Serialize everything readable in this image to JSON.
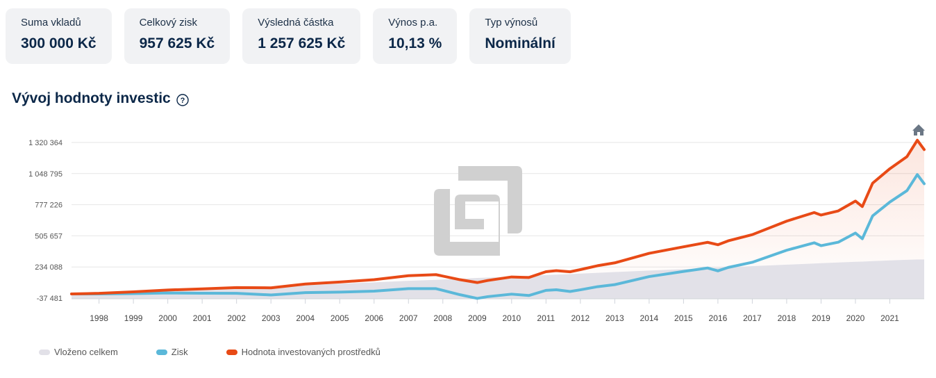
{
  "stats": [
    {
      "label": "Suma vkladů",
      "value": "300 000 Kč"
    },
    {
      "label": "Celkový zisk",
      "value": "957 625 Kč"
    },
    {
      "label": "Výsledná částka",
      "value": "1 257 625 Kč"
    },
    {
      "label": "Výnos p.a.",
      "value": "10,13 %"
    },
    {
      "label": "Typ výnosů",
      "value": "Nominální"
    }
  ],
  "section_title": "Vývoj hodnoty investic",
  "icons": {
    "help": "question-circle-icon",
    "home": "home-icon",
    "watermark": "logo-watermark"
  },
  "colors": {
    "navy": "#0b2748",
    "deposited": "#e2e1e8",
    "profit": "#5bb8d9",
    "value": "#e84a16",
    "watermark": "#d0d0d0"
  },
  "legend": [
    {
      "label": "Vloženo celkem",
      "color": "#e2e1e8"
    },
    {
      "label": "Zisk",
      "color": "#5bb8d9"
    },
    {
      "label": "Hodnota investovaných prostředků",
      "color": "#e84a16"
    }
  ],
  "chart_data": {
    "type": "area",
    "ytick_labels": [
      "1 320 364",
      "1 048 795",
      "777 226",
      "505 657",
      "234 088",
      "-37 481"
    ],
    "yticks": [
      1320364,
      1048795,
      777226,
      505657,
      234088,
      -37481
    ],
    "ylim": [
      -37481,
      1320364
    ],
    "xlim": [
      1997.2,
      2022.0
    ],
    "xtick_labels": [
      "1998",
      "1999",
      "2000",
      "2001",
      "2002",
      "2003",
      "2004",
      "2005",
      "2006",
      "2007",
      "2008",
      "2009",
      "2010",
      "2011",
      "2012",
      "2013",
      "2014",
      "2015",
      "2016",
      "2017",
      "2018",
      "2019",
      "2020",
      "2021"
    ],
    "grid": "horizontal",
    "legend_position": "bottom-left",
    "x": [
      1997.2,
      1998,
      1999,
      2000,
      2001,
      2002,
      2003,
      2004,
      2005,
      2006,
      2007,
      2007.8,
      2008.5,
      2009.0,
      2009.3,
      2010,
      2010.5,
      2011,
      2011.3,
      2011.7,
      2012,
      2012.5,
      2013,
      2014,
      2015,
      2015.7,
      2016,
      2016.3,
      2017,
      2018,
      2018.8,
      2019,
      2019.5,
      2020.0,
      2020.2,
      2020.5,
      2021,
      2021.5,
      2021.8,
      2022.0
    ],
    "series": [
      {
        "name": "Vloženo celkem",
        "values": [
          0,
          5000,
          15000,
          26000,
          38000,
          50000,
          62000,
          75000,
          88000,
          100000,
          113000,
          122000,
          131000,
          138000,
          141000,
          150000,
          157000,
          163000,
          167000,
          172000,
          176000,
          183000,
          190000,
          203000,
          215000,
          224000,
          228000,
          232000,
          241000,
          254000,
          264000,
          267000,
          273000,
          279000,
          281000,
          285000,
          291000,
          297000,
          300000,
          300000
        ]
      },
      {
        "name": "Zisk",
        "values": [
          -1000,
          -1000,
          2000,
          7000,
          5000,
          4000,
          -10000,
          10000,
          15000,
          23000,
          45000,
          45000,
          -8000,
          -40000,
          -25000,
          -3000,
          -15000,
          30000,
          35000,
          20000,
          35000,
          62000,
          80000,
          150000,
          195000,
          225000,
          200000,
          230000,
          275000,
          380000,
          445000,
          420000,
          450000,
          530000,
          480000,
          680000,
          800000,
          900000,
          1040000,
          960000
        ]
      },
      {
        "name": "Hodnota investovaných prostředků",
        "values": [
          -1000,
          4000,
          17000,
          33000,
          43000,
          54000,
          52000,
          85000,
          103000,
          123000,
          158000,
          167000,
          123000,
          98000,
          116000,
          147000,
          142000,
          193000,
          202000,
          192000,
          211000,
          245000,
          270000,
          353000,
          410000,
          449000,
          428000,
          462000,
          516000,
          634000,
          709000,
          687000,
          723000,
          809000,
          761000,
          965000,
          1091000,
          1197000,
          1340000,
          1258000
        ]
      }
    ]
  }
}
